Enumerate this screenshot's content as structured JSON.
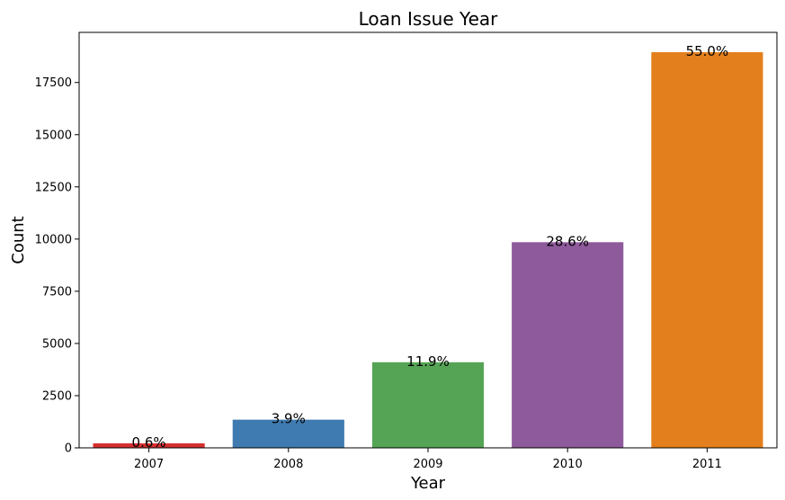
{
  "chart_data": {
    "type": "bar",
    "title": "Loan Issue Year",
    "xlabel": "Year",
    "ylabel": "Count",
    "categories": [
      "2007",
      "2008",
      "2009",
      "2010",
      "2011"
    ],
    "values": [
      215,
      1350,
      4100,
      9850,
      18950
    ],
    "bar_labels": [
      "0.6%",
      "3.9%",
      "11.9%",
      "28.6%",
      "55.0%"
    ],
    "colors": [
      "#d62f2f",
      "#3f7bb0",
      "#55a455",
      "#8e5a9b",
      "#e37f1c"
    ],
    "yticks": [
      0,
      2500,
      5000,
      7500,
      10000,
      12500,
      15000,
      17500
    ],
    "ylim": [
      0,
      19900
    ],
    "grid": false,
    "legend": "none"
  }
}
